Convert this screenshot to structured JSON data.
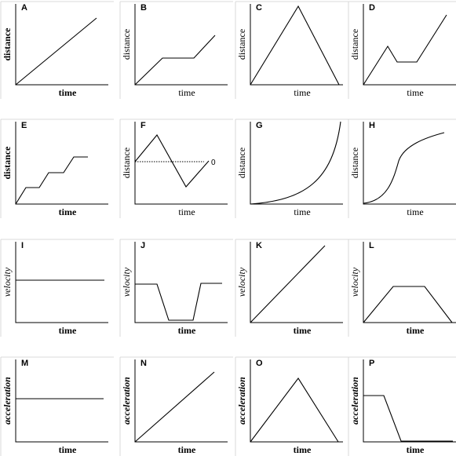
{
  "panels": [
    {
      "letter": "A",
      "xlabel": "time",
      "ylabel": "distance",
      "xbold": true,
      "ybold": true,
      "yitalic": false
    },
    {
      "letter": "B",
      "xlabel": "time",
      "ylabel": "distance",
      "xbold": false,
      "ybold": false,
      "yitalic": false
    },
    {
      "letter": "C",
      "xlabel": "time",
      "ylabel": "distance",
      "xbold": false,
      "ybold": false,
      "yitalic": false
    },
    {
      "letter": "D",
      "xlabel": "time",
      "ylabel": "distance",
      "xbold": false,
      "ybold": false,
      "yitalic": false
    },
    {
      "letter": "E",
      "xlabel": "time",
      "ylabel": "distance",
      "xbold": true,
      "ybold": true,
      "yitalic": false
    },
    {
      "letter": "F",
      "xlabel": "time",
      "ylabel": "distance",
      "xbold": false,
      "ybold": false,
      "yitalic": false,
      "note": "0"
    },
    {
      "letter": "G",
      "xlabel": "time",
      "ylabel": "distance",
      "xbold": false,
      "ybold": false,
      "yitalic": false
    },
    {
      "letter": "H",
      "xlabel": "time",
      "ylabel": "distance",
      "xbold": false,
      "ybold": false,
      "yitalic": false
    },
    {
      "letter": "I",
      "xlabel": "time",
      "ylabel": "velocity",
      "xbold": true,
      "ybold": false,
      "yitalic": true
    },
    {
      "letter": "J",
      "xlabel": "time",
      "ylabel": "velocity",
      "xbold": true,
      "ybold": false,
      "yitalic": true
    },
    {
      "letter": "K",
      "xlabel": "time",
      "ylabel": "velocity",
      "xbold": true,
      "ybold": false,
      "yitalic": true
    },
    {
      "letter": "L",
      "xlabel": "time",
      "ylabel": "velocity",
      "xbold": true,
      "ybold": false,
      "yitalic": true
    },
    {
      "letter": "M",
      "xlabel": "time",
      "ylabel": "acceleration",
      "xbold": true,
      "ybold": true,
      "yitalic": true
    },
    {
      "letter": "N",
      "xlabel": "time",
      "ylabel": "acceleration",
      "xbold": true,
      "ybold": true,
      "yitalic": true
    },
    {
      "letter": "O",
      "xlabel": "time",
      "ylabel": "acceleration",
      "xbold": true,
      "ybold": true,
      "yitalic": true
    },
    {
      "letter": "P",
      "xlabel": "time",
      "ylabel": "acceleration",
      "xbold": true,
      "ybold": true,
      "yitalic": true
    }
  ]
}
